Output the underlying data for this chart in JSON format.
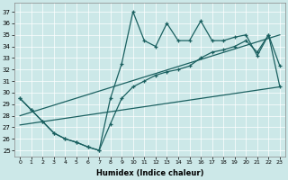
{
  "xlabel": "Humidex (Indice chaleur)",
  "bg_color": "#cce8e8",
  "line_color": "#1a6060",
  "xlim": [
    -0.5,
    23.5
  ],
  "ylim": [
    24.5,
    37.8
  ],
  "yticks": [
    25,
    26,
    27,
    28,
    29,
    30,
    31,
    32,
    33,
    34,
    35,
    36,
    37
  ],
  "xticks": [
    0,
    1,
    2,
    3,
    4,
    5,
    6,
    7,
    8,
    9,
    10,
    11,
    12,
    13,
    14,
    15,
    16,
    17,
    18,
    19,
    20,
    21,
    22,
    23
  ],
  "curve1_x": [
    0,
    1,
    2,
    3,
    4,
    5,
    6,
    7,
    8,
    9,
    10,
    11,
    12,
    13,
    14,
    15,
    16,
    17,
    18,
    19,
    20,
    21,
    22,
    23
  ],
  "curve1_y": [
    29.5,
    28.5,
    27.5,
    26.5,
    26.0,
    25.7,
    25.3,
    25.0,
    29.5,
    32.5,
    37.0,
    34.5,
    34.0,
    36.0,
    34.5,
    34.5,
    36.2,
    34.5,
    34.5,
    34.8,
    35.0,
    33.2,
    35.0,
    32.3
  ],
  "curve2_x": [
    0,
    23
  ],
  "curve2_y": [
    28.0,
    35.0
  ],
  "curve3_x": [
    0,
    23
  ],
  "curve3_y": [
    27.2,
    30.5
  ],
  "curve4_x": [
    0,
    1,
    2,
    3,
    4,
    5,
    6,
    7,
    8,
    9,
    10,
    11,
    12,
    13,
    14,
    15,
    16,
    17,
    18,
    19,
    20,
    21,
    22,
    23
  ],
  "curve4_y": [
    29.5,
    28.5,
    27.5,
    26.5,
    26.0,
    25.7,
    25.3,
    25.0,
    27.3,
    29.5,
    30.5,
    31.0,
    31.5,
    31.8,
    32.0,
    32.3,
    33.0,
    33.5,
    33.7,
    34.0,
    34.5,
    33.5,
    35.0,
    30.5
  ]
}
